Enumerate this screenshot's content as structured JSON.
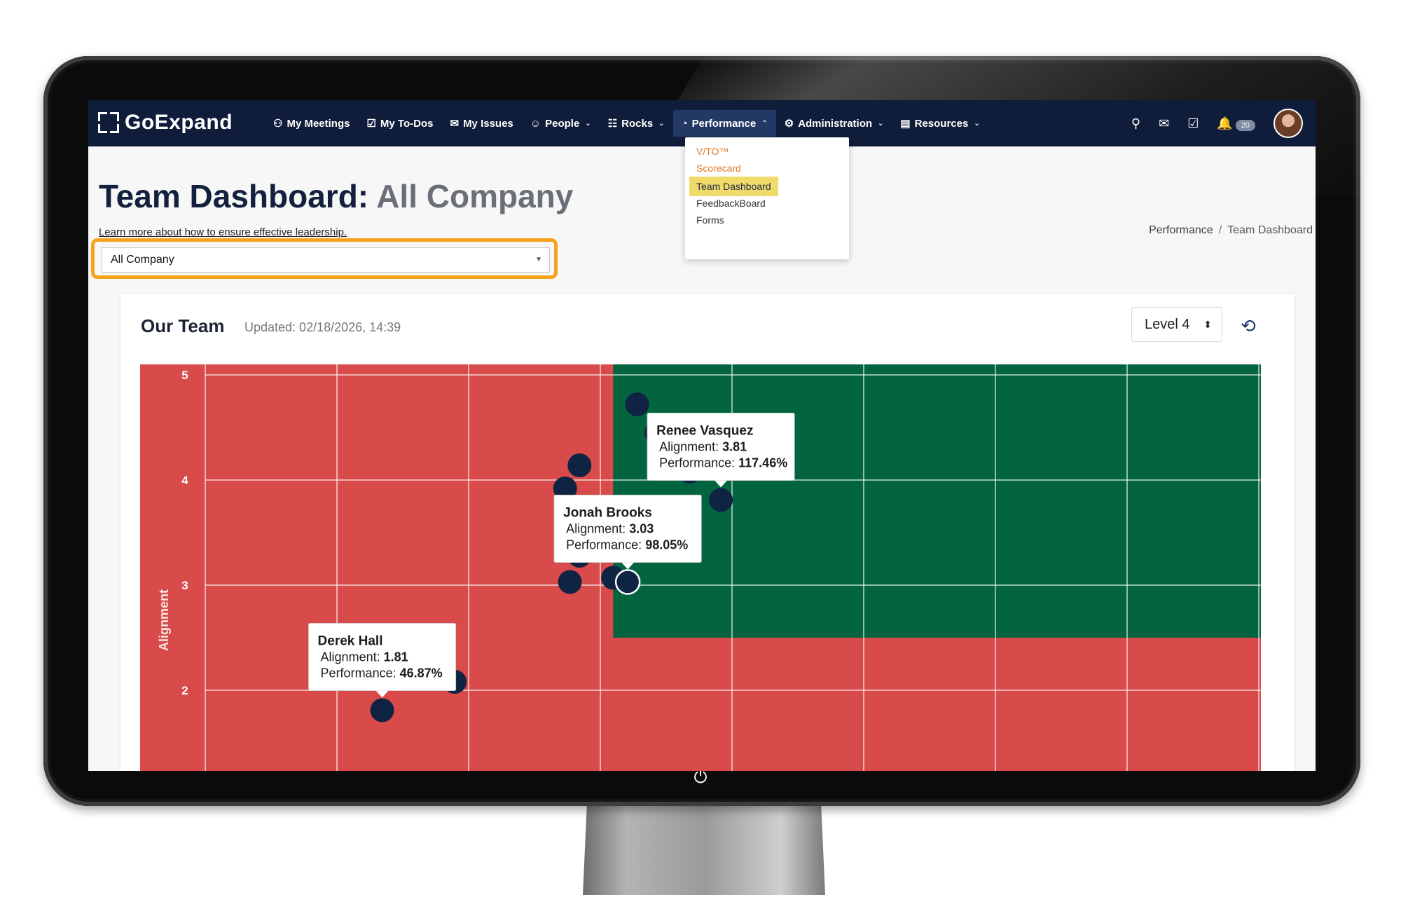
{
  "app": {
    "name": "GoExpand"
  },
  "nav": [
    {
      "label": "My Meetings",
      "icon": "meetings-icon",
      "glyph": "⚇"
    },
    {
      "label": "My To-Dos",
      "icon": "checkbox-icon",
      "glyph": "☑"
    },
    {
      "label": "My Issues",
      "icon": "comments-icon",
      "glyph": "✉"
    },
    {
      "label": "People",
      "icon": "users-icon",
      "glyph": "☺",
      "dropdown": true
    },
    {
      "label": "Rocks",
      "icon": "sitemap-icon",
      "glyph": "☷",
      "dropdown": true
    },
    {
      "label": "Performance",
      "icon": "dashboard-icon",
      "glyph": "◔",
      "dropdown": true,
      "open": true
    },
    {
      "label": "Administration",
      "icon": "gear-icon",
      "glyph": "⚙",
      "dropdown": true
    },
    {
      "label": "Resources",
      "icon": "book-icon",
      "glyph": "▤",
      "dropdown": true
    }
  ],
  "topbar": {
    "notification_count": "20"
  },
  "performance_menu": [
    {
      "label": "V/TO™"
    },
    {
      "label": "Scorecard"
    },
    {
      "label": "Team Dashboard"
    },
    {
      "label": "FeedbackBoard"
    },
    {
      "label": "Forms"
    }
  ],
  "page": {
    "title_main": "Team Dashboard:",
    "title_sub": "All Company",
    "subtitle": "Learn more about how to ensure effective leadership.",
    "breadcrumb": [
      "Performance",
      "Team Dashboard"
    ]
  },
  "team_select": {
    "value": "All Company"
  },
  "card": {
    "title": "Our Team",
    "updated": "Updated: 02/18/2026, 14:39",
    "level": "Level 4"
  },
  "colors": {
    "red_zone": "#d94a4a",
    "green_zone": "#02653f",
    "navy": "#0f1c3a",
    "accent": "#f5a31d",
    "point": "#0f2342"
  },
  "chart_data": {
    "type": "scatter",
    "ylabel": "Alignment",
    "xlabel": "",
    "yticks": [
      "2",
      "3",
      "4",
      "5"
    ],
    "ylim": [
      1.1,
      5.1
    ],
    "xlim": [
      10,
      230
    ],
    "green_zone": {
      "x_min": 95,
      "y_min": 2.5
    },
    "points": [
      {
        "x": 100,
        "y": 4.72
      },
      {
        "x": 104,
        "y": 4.45
      },
      {
        "x": 113,
        "y": 4.51
      },
      {
        "x": 88,
        "y": 4.14
      },
      {
        "x": 111,
        "y": 4.08
      },
      {
        "x": 85,
        "y": 3.92
      },
      {
        "x": 117.46,
        "y": 3.81,
        "name": "Renee Vasquez",
        "tooltip": true
      },
      {
        "x": 88,
        "y": 3.28
      },
      {
        "x": 86,
        "y": 3.03
      },
      {
        "x": 95,
        "y": 3.07
      },
      {
        "x": 98.05,
        "y": 3.03,
        "name": "Jonah Brooks",
        "tooltip": true,
        "highlight": true
      },
      {
        "x": 62,
        "y": 2.08
      },
      {
        "x": 46.87,
        "y": 1.81,
        "name": "Derek Hall",
        "tooltip": true
      }
    ],
    "tooltip_labels": {
      "alignment": "Alignment:",
      "performance": "Performance:"
    }
  }
}
